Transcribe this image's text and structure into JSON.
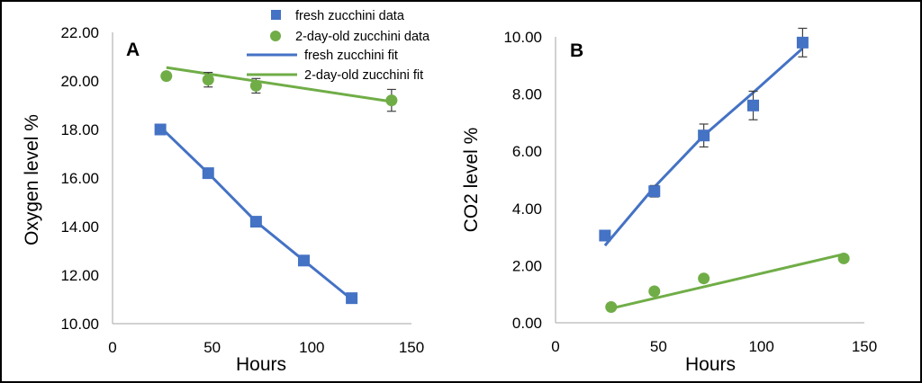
{
  "colors": {
    "fresh": "#4472C4",
    "old": "#70AD47",
    "axis": "#a6a6a6",
    "error": "#3f3f3f",
    "frame": "#000000"
  },
  "legend": {
    "fresh_data": "fresh zucchini data",
    "old_data": "2-day-old zucchini data",
    "fresh_fit": "fresh zucchini fit",
    "old_fit": "2-day-old zucchini fit"
  },
  "chart_data": [
    {
      "type": "scatter",
      "panel": "A",
      "xlabel": "Hours",
      "ylabel": "Oxygen level %",
      "xlim": [
        0,
        150
      ],
      "ylim": [
        10,
        22
      ],
      "xticks": [
        "0",
        "50",
        "100",
        "150"
      ],
      "yticks": [
        "10.00",
        "12.00",
        "14.00",
        "16.00",
        "18.00",
        "20.00",
        "22.00"
      ],
      "series": [
        {
          "name": "fresh zucchini data",
          "marker": "square",
          "color": "fresh",
          "x": [
            24,
            48,
            72,
            96,
            120
          ],
          "y": [
            18.0,
            16.2,
            14.2,
            12.6,
            11.05
          ],
          "err": [
            0.15,
            0.15,
            0.15,
            0.15,
            0.1
          ]
        },
        {
          "name": "2-day-old zucchini data",
          "marker": "circle",
          "color": "old",
          "x": [
            27,
            48,
            72,
            140
          ],
          "y": [
            20.2,
            20.05,
            19.8,
            19.2
          ],
          "err": [
            0.1,
            0.3,
            0.3,
            0.45
          ]
        }
      ],
      "fits": [
        {
          "name": "fresh zucchini fit",
          "color": "fresh",
          "x": [
            24,
            48,
            72,
            96,
            120
          ],
          "y": [
            18.1,
            16.2,
            14.2,
            12.6,
            11.0
          ]
        },
        {
          "name": "2-day-old zucchini fit",
          "color": "old",
          "x": [
            27,
            140
          ],
          "y": [
            20.55,
            19.15
          ]
        }
      ]
    },
    {
      "type": "scatter",
      "panel": "B",
      "xlabel": "Hours",
      "ylabel": "CO2 level %",
      "xlim": [
        0,
        150
      ],
      "ylim": [
        0,
        10
      ],
      "xticks": [
        "0",
        "50",
        "100",
        "150"
      ],
      "yticks": [
        "0.00",
        "2.00",
        "4.00",
        "6.00",
        "8.00",
        "10.00"
      ],
      "series": [
        {
          "name": "fresh zucchini data",
          "marker": "square",
          "color": "fresh",
          "x": [
            24,
            48,
            72,
            96,
            120
          ],
          "y": [
            3.05,
            4.6,
            6.55,
            7.6,
            9.8
          ],
          "err": [
            0.15,
            0.2,
            0.4,
            0.5,
            0.5
          ]
        },
        {
          "name": "2-day-old zucchini data",
          "marker": "circle",
          "color": "old",
          "x": [
            27,
            48,
            72,
            140
          ],
          "y": [
            0.55,
            1.1,
            1.55,
            2.25
          ],
          "err": [
            0,
            0,
            0,
            0
          ]
        }
      ],
      "fits": [
        {
          "name": "fresh zucchini fit",
          "color": "fresh",
          "x": [
            24,
            48,
            72,
            96,
            120
          ],
          "y": [
            2.7,
            4.75,
            6.55,
            8.05,
            9.6
          ]
        },
        {
          "name": "2-day-old zucchini fit",
          "color": "old",
          "x": [
            27,
            140
          ],
          "y": [
            0.5,
            2.4
          ]
        }
      ]
    }
  ]
}
